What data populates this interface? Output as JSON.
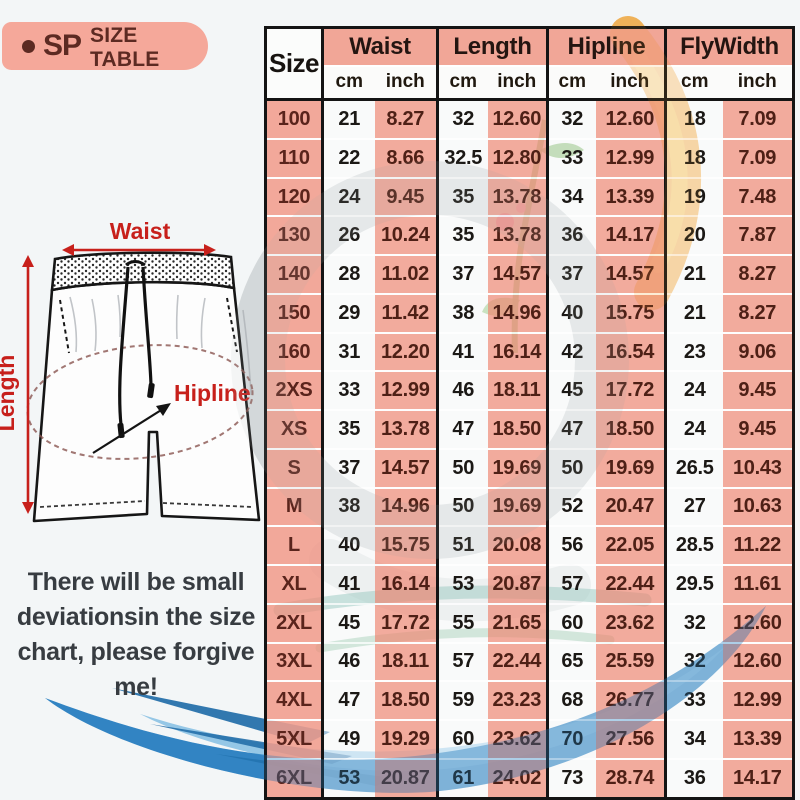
{
  "badge": {
    "bullet": "•",
    "prefix": "SP",
    "title": "SIZE TABLE"
  },
  "diagram": {
    "waist": "Waist",
    "length": "Length",
    "hipline": "Hipline"
  },
  "note": {
    "line1": "There will be small",
    "line2": "deviationsin the size",
    "line3": "chart, please forgive me!"
  },
  "table": {
    "size_header": "Size",
    "groups": [
      {
        "label": "Waist"
      },
      {
        "label": "Length"
      },
      {
        "label": "Hipline"
      },
      {
        "label": "FlyWidth"
      }
    ],
    "units": {
      "cm": "cm",
      "inch": "inch"
    },
    "rows": [
      {
        "size": "100",
        "waist_cm": "21",
        "waist_in": "8.27",
        "length_cm": "32",
        "length_in": "12.60",
        "hip_cm": "32",
        "hip_in": "12.60",
        "fly_cm": "18",
        "fly_in": "7.09"
      },
      {
        "size": "110",
        "waist_cm": "22",
        "waist_in": "8.66",
        "length_cm": "32.5",
        "length_in": "12.80",
        "hip_cm": "33",
        "hip_in": "12.99",
        "fly_cm": "18",
        "fly_in": "7.09"
      },
      {
        "size": "120",
        "waist_cm": "24",
        "waist_in": "9.45",
        "length_cm": "35",
        "length_in": "13.78",
        "hip_cm": "34",
        "hip_in": "13.39",
        "fly_cm": "19",
        "fly_in": "7.48"
      },
      {
        "size": "130",
        "waist_cm": "26",
        "waist_in": "10.24",
        "length_cm": "35",
        "length_in": "13.78",
        "hip_cm": "36",
        "hip_in": "14.17",
        "fly_cm": "20",
        "fly_in": "7.87"
      },
      {
        "size": "140",
        "waist_cm": "28",
        "waist_in": "11.02",
        "length_cm": "37",
        "length_in": "14.57",
        "hip_cm": "37",
        "hip_in": "14.57",
        "fly_cm": "21",
        "fly_in": "8.27"
      },
      {
        "size": "150",
        "waist_cm": "29",
        "waist_in": "11.42",
        "length_cm": "38",
        "length_in": "14.96",
        "hip_cm": "40",
        "hip_in": "15.75",
        "fly_cm": "21",
        "fly_in": "8.27"
      },
      {
        "size": "160",
        "waist_cm": "31",
        "waist_in": "12.20",
        "length_cm": "41",
        "length_in": "16.14",
        "hip_cm": "42",
        "hip_in": "16.54",
        "fly_cm": "23",
        "fly_in": "9.06"
      },
      {
        "size": "2XS",
        "waist_cm": "33",
        "waist_in": "12.99",
        "length_cm": "46",
        "length_in": "18.11",
        "hip_cm": "45",
        "hip_in": "17.72",
        "fly_cm": "24",
        "fly_in": "9.45"
      },
      {
        "size": "XS",
        "waist_cm": "35",
        "waist_in": "13.78",
        "length_cm": "47",
        "length_in": "18.50",
        "hip_cm": "47",
        "hip_in": "18.50",
        "fly_cm": "24",
        "fly_in": "9.45"
      },
      {
        "size": "S",
        "waist_cm": "37",
        "waist_in": "14.57",
        "length_cm": "50",
        "length_in": "19.69",
        "hip_cm": "50",
        "hip_in": "19.69",
        "fly_cm": "26.5",
        "fly_in": "10.43"
      },
      {
        "size": "M",
        "waist_cm": "38",
        "waist_in": "14.96",
        "length_cm": "50",
        "length_in": "19.69",
        "hip_cm": "52",
        "hip_in": "20.47",
        "fly_cm": "27",
        "fly_in": "10.63"
      },
      {
        "size": "L",
        "waist_cm": "40",
        "waist_in": "15.75",
        "length_cm": "51",
        "length_in": "20.08",
        "hip_cm": "56",
        "hip_in": "22.05",
        "fly_cm": "28.5",
        "fly_in": "11.22"
      },
      {
        "size": "XL",
        "waist_cm": "41",
        "waist_in": "16.14",
        "length_cm": "53",
        "length_in": "20.87",
        "hip_cm": "57",
        "hip_in": "22.44",
        "fly_cm": "29.5",
        "fly_in": "11.61"
      },
      {
        "size": "2XL",
        "waist_cm": "45",
        "waist_in": "17.72",
        "length_cm": "55",
        "length_in": "21.65",
        "hip_cm": "60",
        "hip_in": "23.62",
        "fly_cm": "32",
        "fly_in": "12.60"
      },
      {
        "size": "3XL",
        "waist_cm": "46",
        "waist_in": "18.11",
        "length_cm": "57",
        "length_in": "22.44",
        "hip_cm": "65",
        "hip_in": "25.59",
        "fly_cm": "32",
        "fly_in": "12.60"
      },
      {
        "size": "4XL",
        "waist_cm": "47",
        "waist_in": "18.50",
        "length_cm": "59",
        "length_in": "23.23",
        "hip_cm": "68",
        "hip_in": "26.77",
        "fly_cm": "33",
        "fly_in": "12.99"
      },
      {
        "size": "5XL",
        "waist_cm": "49",
        "waist_in": "19.29",
        "length_cm": "60",
        "length_in": "23.62",
        "hip_cm": "70",
        "hip_in": "27.56",
        "fly_cm": "34",
        "fly_in": "13.39"
      },
      {
        "size": "6XL",
        "waist_cm": "53",
        "waist_in": "20.87",
        "length_cm": "61",
        "length_in": "24.02",
        "hip_cm": "73",
        "hip_in": "28.74",
        "fly_cm": "36",
        "fly_in": "14.17"
      }
    ]
  },
  "colors": {
    "salmon": "#F19E8E",
    "badge_pink": "#F5A89A",
    "accent_red": "#C7201B",
    "swoosh_blue": "#2A80C1",
    "text_dark": "#1C1714",
    "text_maroon": "#5A251D"
  }
}
